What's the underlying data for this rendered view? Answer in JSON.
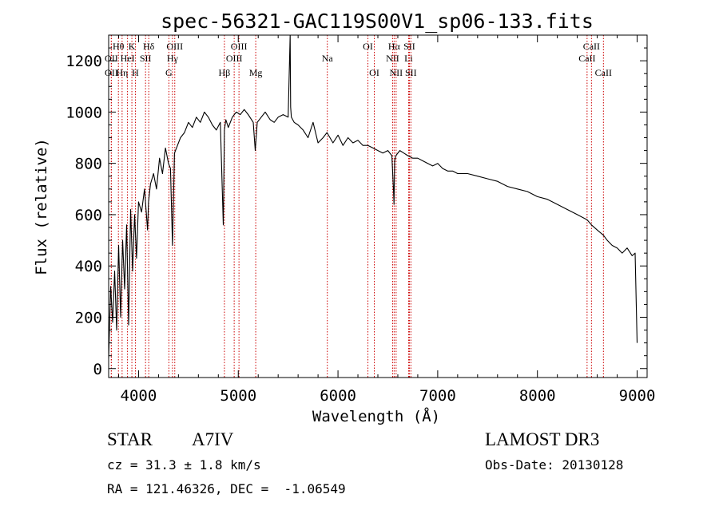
{
  "chart_data": {
    "type": "line",
    "title": "spec-56321-GAC119S00V1_sp06-133.fits",
    "xlabel": "Wavelength (Å)",
    "ylabel": "Flux (relative)",
    "xlim": [
      3700,
      9100
    ],
    "ylim": [
      -35,
      1300
    ],
    "xticks": [
      4000,
      5000,
      6000,
      7000,
      8000,
      9000
    ],
    "xtick_labels": [
      "4000",
      "5000",
      "6000",
      "7000",
      "8000",
      "9000"
    ],
    "yticks": [
      0,
      200,
      400,
      600,
      800,
      1000,
      1200
    ],
    "ytick_labels": [
      "0",
      "200",
      "400",
      "600",
      "800",
      "1000",
      "1200"
    ],
    "line_color": "#000000",
    "marker_color": "#cc0000",
    "spectrum": {
      "name": "flux",
      "x": [
        3700,
        3720,
        3740,
        3760,
        3780,
        3800,
        3820,
        3840,
        3860,
        3880,
        3900,
        3920,
        3940,
        3960,
        3980,
        4000,
        4030,
        4060,
        4090,
        4100,
        4120,
        4150,
        4180,
        4210,
        4240,
        4270,
        4300,
        4320,
        4340,
        4360,
        4380,
        4420,
        4460,
        4500,
        4540,
        4580,
        4620,
        4660,
        4700,
        4740,
        4780,
        4820,
        4850,
        4861,
        4875,
        4900,
        4940,
        4980,
        5020,
        5060,
        5100,
        5150,
        5170,
        5190,
        5230,
        5270,
        5320,
        5360,
        5400,
        5450,
        5500,
        5520,
        5525,
        5532,
        5560,
        5600,
        5650,
        5700,
        5750,
        5800,
        5850,
        5890,
        5950,
        6000,
        6050,
        6100,
        6150,
        6200,
        6250,
        6300,
        6350,
        6400,
        6450,
        6500,
        6540,
        6556,
        6562,
        6568,
        6580,
        6620,
        6660,
        6700,
        6750,
        6800,
        6850,
        6900,
        6950,
        7000,
        7050,
        7100,
        7150,
        7200,
        7300,
        7400,
        7500,
        7600,
        7700,
        7800,
        7900,
        8000,
        8100,
        8200,
        8300,
        8400,
        8498,
        8542,
        8600,
        8662,
        8700,
        8750,
        8800,
        8850,
        8900,
        8950,
        8980,
        9000
      ],
      "y": [
        40,
        320,
        180,
        380,
        150,
        480,
        200,
        500,
        310,
        560,
        170,
        620,
        380,
        600,
        430,
        650,
        610,
        700,
        540,
        650,
        720,
        760,
        700,
        820,
        760,
        860,
        800,
        780,
        480,
        840,
        860,
        900,
        920,
        960,
        940,
        980,
        960,
        1000,
        980,
        950,
        930,
        960,
        560,
        930,
        970,
        940,
        980,
        1000,
        990,
        1010,
        990,
        960,
        850,
        960,
        980,
        1000,
        970,
        960,
        980,
        990,
        980,
        1300,
        1020,
        980,
        960,
        950,
        930,
        900,
        960,
        880,
        900,
        920,
        880,
        910,
        870,
        900,
        880,
        890,
        870,
        870,
        860,
        850,
        840,
        850,
        830,
        700,
        640,
        810,
        830,
        850,
        840,
        830,
        820,
        820,
        810,
        800,
        790,
        800,
        780,
        770,
        770,
        760,
        760,
        750,
        740,
        730,
        710,
        700,
        690,
        670,
        660,
        640,
        620,
        600,
        580,
        560,
        540,
        520,
        500,
        480,
        470,
        450,
        470,
        440,
        450,
        100
      ]
    },
    "lines": [
      {
        "w": 3798,
        "label": "Hθ",
        "row": 1
      },
      {
        "w": 3727,
        "label": "OII",
        "row": 2
      },
      {
        "w": 3727,
        "label": "OII",
        "row": 3
      },
      {
        "w": 3835,
        "label": "Hη",
        "row": 3
      },
      {
        "w": 3889,
        "label": "HeI",
        "row": 2
      },
      {
        "w": 3933,
        "label": "K",
        "row": 1
      },
      {
        "w": 3968,
        "label": "H",
        "row": 3
      },
      {
        "w": 4070,
        "label": "SII",
        "row": 2
      },
      {
        "w": 4102,
        "label": "Hδ",
        "row": 1
      },
      {
        "w": 4304,
        "label": "G",
        "row": 3
      },
      {
        "w": 4340,
        "label": "Hγ",
        "row": 2
      },
      {
        "w": 4363,
        "label": "OIII",
        "row": 1
      },
      {
        "w": 4861,
        "label": "Hβ",
        "row": 3
      },
      {
        "w": 4959,
        "label": "OIII",
        "row": 2
      },
      {
        "w": 5007,
        "label": "OIII",
        "row": 1
      },
      {
        "w": 5175,
        "label": "Mg",
        "row": 3
      },
      {
        "w": 5893,
        "label": "Na",
        "row": 2
      },
      {
        "w": 6300,
        "label": "OI",
        "row": 1
      },
      {
        "w": 6364,
        "label": "OI",
        "row": 3
      },
      {
        "w": 6548,
        "label": "NII",
        "row": 2
      },
      {
        "w": 6563,
        "label": "Hα",
        "row": 1
      },
      {
        "w": 6583,
        "label": "NII",
        "row": 3
      },
      {
        "w": 6708,
        "label": "Li",
        "row": 2
      },
      {
        "w": 6716,
        "label": "SII",
        "row": 1
      },
      {
        "w": 6731,
        "label": "SII",
        "row": 3
      },
      {
        "w": 8498,
        "label": "CaII",
        "row": 2
      },
      {
        "w": 8542,
        "label": "CaII",
        "row": 1
      },
      {
        "w": 8662,
        "label": "CaII",
        "row": 3
      }
    ]
  },
  "info": {
    "object_class": "STAR",
    "subclass": "A7IV",
    "survey": "LAMOST DR3",
    "cz": "cz = 31.3 ± 1.8 km/s",
    "obs_date": "Obs-Date: 20130128",
    "coords": "RA = 121.46326, DEC =  -1.06549"
  }
}
